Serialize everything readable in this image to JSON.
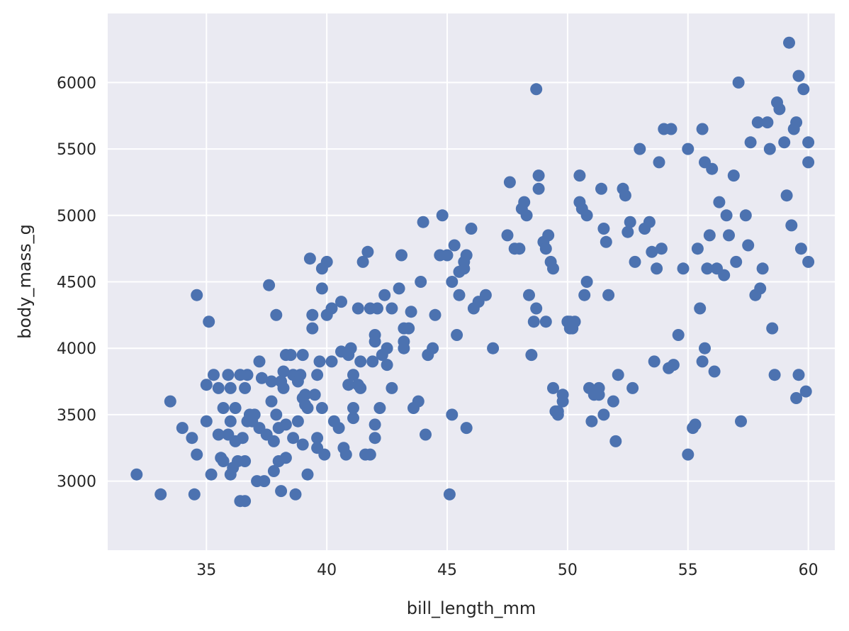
{
  "chart_data": {
    "type": "scatter",
    "xlabel": "bill_length_mm",
    "ylabel": "body_mass_g",
    "xlim": [
      30.9,
      61.1
    ],
    "ylim": [
      2480,
      6520
    ],
    "x_ticks": [
      35,
      40,
      45,
      50,
      55,
      60
    ],
    "y_ticks": [
      3000,
      3500,
      4000,
      4500,
      5000,
      5500,
      6000
    ],
    "grid": true,
    "colors": {
      "background": "#eaeaf2",
      "grid": "#ffffff",
      "marker": "#4c72b0",
      "text": "#262626"
    },
    "points": [
      [
        32.1,
        3050
      ],
      [
        33.1,
        2900
      ],
      [
        33.5,
        3600
      ],
      [
        34.0,
        3400
      ],
      [
        34.4,
        3325
      ],
      [
        34.5,
        2900
      ],
      [
        34.6,
        4400
      ],
      [
        34.6,
        3200
      ],
      [
        35.0,
        3450
      ],
      [
        35.1,
        4200
      ],
      [
        35.0,
        3725
      ],
      [
        35.2,
        3050
      ],
      [
        35.3,
        3800
      ],
      [
        35.5,
        3700
      ],
      [
        35.5,
        3350
      ],
      [
        35.6,
        3175
      ],
      [
        35.7,
        3550
      ],
      [
        35.7,
        3150
      ],
      [
        35.9,
        3350
      ],
      [
        35.9,
        3800
      ],
      [
        36.0,
        3050
      ],
      [
        36.0,
        3700
      ],
      [
        36.0,
        3450
      ],
      [
        36.1,
        3100
      ],
      [
        36.2,
        3550
      ],
      [
        36.2,
        3300
      ],
      [
        36.3,
        3150
      ],
      [
        36.4,
        3800
      ],
      [
        36.4,
        2850
      ],
      [
        36.5,
        3325
      ],
      [
        36.6,
        2850
      ],
      [
        36.6,
        3150
      ],
      [
        36.6,
        3700
      ],
      [
        36.7,
        3450
      ],
      [
        36.7,
        3800
      ],
      [
        36.8,
        3500
      ],
      [
        36.9,
        3450
      ],
      [
        37.0,
        3500
      ],
      [
        37.1,
        3000
      ],
      [
        37.2,
        3900
      ],
      [
        37.2,
        3400
      ],
      [
        37.3,
        3775
      ],
      [
        37.4,
        3000
      ],
      [
        37.5,
        3350
      ],
      [
        37.6,
        4475
      ],
      [
        37.7,
        3600
      ],
      [
        37.7,
        3750
      ],
      [
        37.8,
        3300
      ],
      [
        37.8,
        3075
      ],
      [
        37.9,
        3500
      ],
      [
        38.0,
        3400
      ],
      [
        37.9,
        4250
      ],
      [
        38.0,
        3150
      ],
      [
        38.1,
        2925
      ],
      [
        38.1,
        3750
      ],
      [
        38.2,
        3700
      ],
      [
        38.2,
        3825
      ],
      [
        38.3,
        3425
      ],
      [
        38.3,
        3175
      ],
      [
        38.3,
        3950
      ],
      [
        38.5,
        3950
      ],
      [
        38.6,
        3325
      ],
      [
        38.7,
        2900
      ],
      [
        38.6,
        3800
      ],
      [
        38.8,
        3450
      ],
      [
        38.8,
        3750
      ],
      [
        38.9,
        3800
      ],
      [
        39.0,
        3950
      ],
      [
        39.0,
        3275
      ],
      [
        39.0,
        3625
      ],
      [
        39.1,
        3575
      ],
      [
        39.1,
        3650
      ],
      [
        39.2,
        3050
      ],
      [
        39.2,
        3550
      ],
      [
        39.3,
        4675
      ],
      [
        39.4,
        4250
      ],
      [
        39.4,
        4150
      ],
      [
        39.5,
        3650
      ],
      [
        39.6,
        3325
      ],
      [
        39.6,
        3800
      ],
      [
        39.6,
        3250
      ],
      [
        39.7,
        3900
      ],
      [
        39.8,
        4450
      ],
      [
        39.8,
        4600
      ],
      [
        39.8,
        3550
      ],
      [
        39.9,
        3200
      ],
      [
        40.0,
        4250
      ],
      [
        40.0,
        4650
      ],
      [
        40.2,
        3900
      ],
      [
        40.2,
        4300
      ],
      [
        40.3,
        3450
      ],
      [
        40.5,
        3400
      ],
      [
        40.6,
        3975
      ],
      [
        40.6,
        4350
      ],
      [
        40.7,
        3250
      ],
      [
        40.8,
        3200
      ],
      [
        40.9,
        3725
      ],
      [
        40.9,
        3950
      ],
      [
        41.0,
        4000
      ],
      [
        41.1,
        3800
      ],
      [
        41.1,
        3550
      ],
      [
        41.1,
        3475
      ],
      [
        41.3,
        3725
      ],
      [
        41.3,
        4300
      ],
      [
        41.4,
        3900
      ],
      [
        41.4,
        3700
      ],
      [
        41.5,
        4650
      ],
      [
        41.6,
        3200
      ],
      [
        41.7,
        4725
      ],
      [
        41.8,
        3200
      ],
      [
        41.8,
        4300
      ],
      [
        41.9,
        3900
      ],
      [
        42.0,
        3425
      ],
      [
        42.0,
        3325
      ],
      [
        42.0,
        4100
      ],
      [
        42.0,
        4050
      ],
      [
        42.1,
        4300
      ],
      [
        42.2,
        3550
      ],
      [
        42.3,
        3950
      ],
      [
        42.4,
        4400
      ],
      [
        42.5,
        4000
      ],
      [
        42.5,
        3875
      ],
      [
        42.7,
        3700
      ],
      [
        42.7,
        4300
      ],
      [
        43.0,
        4450
      ],
      [
        43.1,
        4700
      ],
      [
        43.2,
        4050
      ],
      [
        43.2,
        4000
      ],
      [
        43.2,
        4150
      ],
      [
        43.4,
        4150
      ],
      [
        43.5,
        4275
      ],
      [
        43.6,
        3550
      ],
      [
        43.8,
        3600
      ],
      [
        43.9,
        4500
      ],
      [
        44.0,
        4950
      ],
      [
        44.1,
        3350
      ],
      [
        44.2,
        3950
      ],
      [
        44.4,
        4000
      ],
      [
        44.5,
        4250
      ],
      [
        44.7,
        4700
      ],
      [
        44.8,
        5000
      ],
      [
        45.0,
        4700
      ],
      [
        45.1,
        2900
      ],
      [
        45.2,
        4500
      ],
      [
        45.2,
        3500
      ],
      [
        45.3,
        4775
      ],
      [
        45.4,
        4100
      ],
      [
        45.5,
        4400
      ],
      [
        45.5,
        4575
      ],
      [
        45.7,
        4600
      ],
      [
        45.7,
        4650
      ],
      [
        45.8,
        4700
      ],
      [
        45.8,
        3400
      ],
      [
        46.0,
        4900
      ],
      [
        46.1,
        4300
      ],
      [
        46.3,
        4350
      ],
      [
        46.6,
        4400
      ],
      [
        46.9,
        4000
      ],
      [
        47.5,
        4850
      ],
      [
        47.6,
        5250
      ],
      [
        47.8,
        4750
      ],
      [
        48.0,
        4750
      ],
      [
        48.1,
        5050
      ],
      [
        48.2,
        5100
      ],
      [
        48.3,
        5000
      ],
      [
        48.4,
        4400
      ],
      [
        48.5,
        3950
      ],
      [
        48.6,
        4200
      ],
      [
        48.7,
        5950
      ],
      [
        48.7,
        4300
      ],
      [
        48.8,
        5300
      ],
      [
        48.8,
        5200
      ],
      [
        49.0,
        4800
      ],
      [
        49.1,
        4200
      ],
      [
        49.1,
        4750
      ],
      [
        49.2,
        4850
      ],
      [
        49.3,
        4650
      ],
      [
        49.4,
        4600
      ],
      [
        49.4,
        3700
      ],
      [
        49.5,
        3525
      ],
      [
        49.6,
        3525
      ],
      [
        49.6,
        3500
      ],
      [
        49.8,
        3650
      ],
      [
        49.8,
        3600
      ],
      [
        50.0,
        4200
      ],
      [
        50.0,
        4200
      ],
      [
        50.1,
        4150
      ],
      [
        50.1,
        4200
      ],
      [
        50.2,
        4150
      ],
      [
        50.3,
        4200
      ],
      [
        50.5,
        5300
      ],
      [
        50.5,
        5100
      ],
      [
        50.6,
        5050
      ],
      [
        50.7,
        4400
      ],
      [
        50.8,
        4500
      ],
      [
        50.8,
        5000
      ],
      [
        50.9,
        3700
      ],
      [
        51.0,
        3450
      ],
      [
        51.1,
        3650
      ],
      [
        51.3,
        3650
      ],
      [
        51.3,
        3700
      ],
      [
        51.4,
        5200
      ],
      [
        51.5,
        3500
      ],
      [
        51.5,
        4900
      ],
      [
        51.6,
        4800
      ],
      [
        51.7,
        4400
      ],
      [
        51.9,
        3600
      ],
      [
        52.0,
        3300
      ],
      [
        52.1,
        3800
      ],
      [
        52.3,
        5200
      ],
      [
        52.4,
        5150
      ],
      [
        52.5,
        4875
      ],
      [
        52.6,
        4950
      ],
      [
        52.7,
        3700
      ],
      [
        52.8,
        4650
      ],
      [
        53.0,
        5500
      ],
      [
        53.2,
        4900
      ],
      [
        53.4,
        4950
      ],
      [
        53.5,
        4725
      ],
      [
        53.6,
        3900
      ],
      [
        53.7,
        4600
      ],
      [
        53.8,
        5400
      ],
      [
        53.9,
        4750
      ],
      [
        54.0,
        5650
      ],
      [
        54.2,
        3850
      ],
      [
        54.3,
        5650
      ],
      [
        54.4,
        3875
      ],
      [
        54.6,
        4100
      ],
      [
        54.8,
        4600
      ],
      [
        55.0,
        3200
      ],
      [
        55.0,
        5500
      ],
      [
        55.2,
        3400
      ],
      [
        55.3,
        3425
      ],
      [
        55.4,
        4750
      ],
      [
        55.5,
        4300
      ],
      [
        55.6,
        5650
      ],
      [
        55.6,
        3900
      ],
      [
        55.7,
        4000
      ],
      [
        55.7,
        5400
      ],
      [
        55.8,
        4600
      ],
      [
        55.9,
        4850
      ],
      [
        56.0,
        5350
      ],
      [
        56.1,
        3825
      ],
      [
        56.2,
        4600
      ],
      [
        56.3,
        5100
      ],
      [
        56.5,
        4550
      ],
      [
        56.6,
        5000
      ],
      [
        56.7,
        4850
      ],
      [
        56.9,
        5300
      ],
      [
        57.0,
        4650
      ],
      [
        57.1,
        6000
      ],
      [
        57.2,
        3450
      ],
      [
        57.4,
        5000
      ],
      [
        57.5,
        4775
      ],
      [
        57.6,
        5550
      ],
      [
        57.8,
        4400
      ],
      [
        57.9,
        5700
      ],
      [
        58.0,
        4450
      ],
      [
        58.1,
        4600
      ],
      [
        58.3,
        5700
      ],
      [
        58.4,
        5500
      ],
      [
        58.5,
        4150
      ],
      [
        58.6,
        3800
      ],
      [
        58.7,
        5850
      ],
      [
        58.8,
        5800
      ],
      [
        59.0,
        5550
      ],
      [
        59.1,
        5150
      ],
      [
        59.2,
        6300
      ],
      [
        59.3,
        4925
      ],
      [
        59.4,
        5650
      ],
      [
        59.5,
        5700
      ],
      [
        59.5,
        3625
      ],
      [
        59.6,
        6050
      ],
      [
        59.6,
        3800
      ],
      [
        59.7,
        4750
      ],
      [
        59.8,
        5950
      ],
      [
        59.9,
        3675
      ],
      [
        60.0,
        5550
      ],
      [
        60.0,
        5400
      ],
      [
        60.0,
        4650
      ]
    ]
  }
}
